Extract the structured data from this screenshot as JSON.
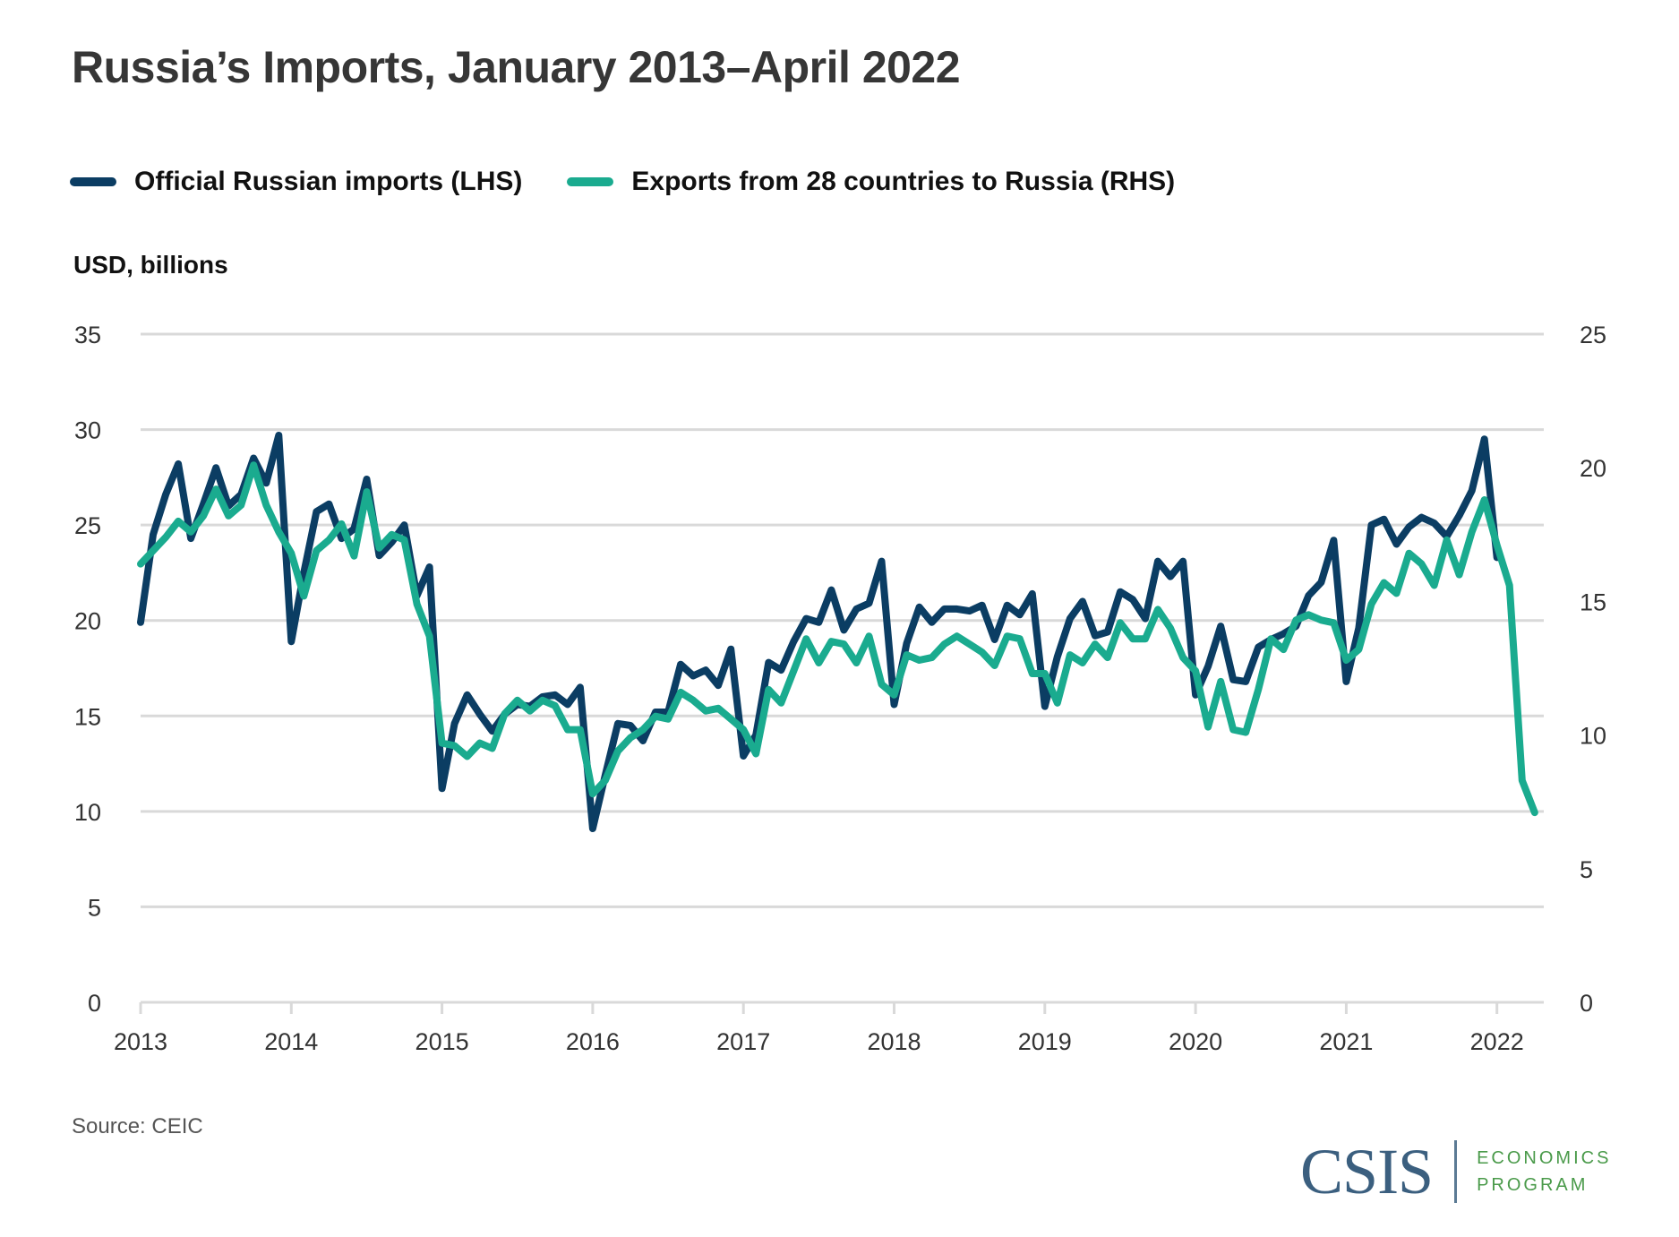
{
  "header": {
    "title": "Russia’s Imports, January 2013–April 2022"
  },
  "legend": {
    "items": [
      {
        "label": "Official Russian imports (LHS)",
        "color": "#0b3d63"
      },
      {
        "label": "Exports from 28 countries to Russia (RHS)",
        "color": "#1aab8f"
      }
    ]
  },
  "axis_unit": "USD, billions",
  "footer": {
    "source": "Source: CEIC",
    "logo_main": "CSIS",
    "logo_sub_1": "ECONOMICS",
    "logo_sub_2": "PROGRAM"
  },
  "colors": {
    "imports": "#0b3d63",
    "exports": "#1aab8f",
    "grid": "#d9d9d9"
  },
  "chart_data": {
    "type": "line",
    "title": "Russia’s Imports, January 2013–April 2022",
    "xlabel": "",
    "ylabel": "USD, billions",
    "x_start": "2013-01",
    "x_frequency": "monthly",
    "x_ticks": [
      "2013",
      "2014",
      "2015",
      "2016",
      "2017",
      "2018",
      "2019",
      "2020",
      "2021",
      "2022"
    ],
    "y_left": {
      "range": [
        0,
        35
      ],
      "ticks": [
        "0",
        "5",
        "10",
        "15",
        "20",
        "25",
        "30",
        "35"
      ]
    },
    "y_right": {
      "range": [
        0,
        25
      ],
      "ticks": [
        "0",
        "5",
        "10",
        "15",
        "20",
        "25"
      ]
    },
    "grid": true,
    "legend_position": "top-left",
    "series": [
      {
        "name": "Official Russian imports (LHS)",
        "axis": "left",
        "start": "2013-01",
        "end": "2022-01",
        "values": [
          19.9,
          24.5,
          26.6,
          28.2,
          24.3,
          26.1,
          28.0,
          26.0,
          26.6,
          28.5,
          27.2,
          29.7,
          18.9,
          22.5,
          25.7,
          26.1,
          24.3,
          24.8,
          27.4,
          23.4,
          24.1,
          25.0,
          21.3,
          22.8,
          11.2,
          14.6,
          16.1,
          15.1,
          14.2,
          15.1,
          15.6,
          15.5,
          16.0,
          16.1,
          15.6,
          16.5,
          9.1,
          11.9,
          14.6,
          14.5,
          13.7,
          15.2,
          15.2,
          17.7,
          17.1,
          17.4,
          16.6,
          18.5,
          12.9,
          14.0,
          17.8,
          17.4,
          18.9,
          20.1,
          19.9,
          21.6,
          19.5,
          20.6,
          20.9,
          23.1,
          15.6,
          18.8,
          20.7,
          19.9,
          20.6,
          20.6,
          20.5,
          20.8,
          19.0,
          20.8,
          20.3,
          21.4,
          15.5,
          18.1,
          20.1,
          21.0,
          19.2,
          19.4,
          21.5,
          21.1,
          20.1,
          23.1,
          22.3,
          23.1,
          16.1,
          17.6,
          19.7,
          16.9,
          16.8,
          18.6,
          19.0,
          19.3,
          19.7,
          21.3,
          22.0,
          24.2,
          16.8,
          19.6,
          25.0,
          25.3,
          24.0,
          24.9,
          25.4,
          25.1,
          24.4,
          25.5,
          26.8,
          29.5,
          23.3
        ]
      },
      {
        "name": "Exports from 28 countries to Russia (RHS)",
        "axis": "right",
        "start": "2013-01",
        "end": "2022-04",
        "values": [
          16.4,
          16.9,
          17.4,
          18.0,
          17.6,
          18.2,
          19.2,
          18.2,
          18.6,
          20.1,
          18.6,
          17.6,
          16.8,
          15.2,
          16.9,
          17.3,
          17.9,
          16.7,
          19.1,
          17.0,
          17.5,
          17.3,
          14.9,
          13.7,
          9.7,
          9.6,
          9.2,
          9.7,
          9.5,
          10.8,
          11.3,
          10.9,
          11.3,
          11.1,
          10.2,
          10.2,
          7.8,
          8.3,
          9.4,
          9.9,
          10.2,
          10.7,
          10.6,
          11.6,
          11.3,
          10.9,
          11.0,
          10.6,
          10.2,
          9.3,
          11.7,
          11.2,
          12.4,
          13.6,
          12.7,
          13.5,
          13.4,
          12.7,
          13.7,
          11.9,
          11.5,
          13.0,
          12.8,
          12.9,
          13.4,
          13.7,
          13.4,
          13.1,
          12.6,
          13.7,
          13.6,
          12.3,
          12.3,
          11.2,
          13.0,
          12.7,
          13.4,
          12.9,
          14.2,
          13.6,
          13.6,
          14.7,
          14.0,
          12.9,
          12.4,
          10.3,
          12.0,
          10.2,
          10.1,
          11.7,
          13.6,
          13.2,
          14.3,
          14.5,
          14.3,
          14.2,
          12.8,
          13.2,
          14.9,
          15.7,
          15.3,
          16.8,
          16.4,
          15.6,
          17.3,
          16.0,
          17.6,
          18.8,
          17.1,
          15.6,
          8.3,
          7.1
        ]
      }
    ]
  }
}
